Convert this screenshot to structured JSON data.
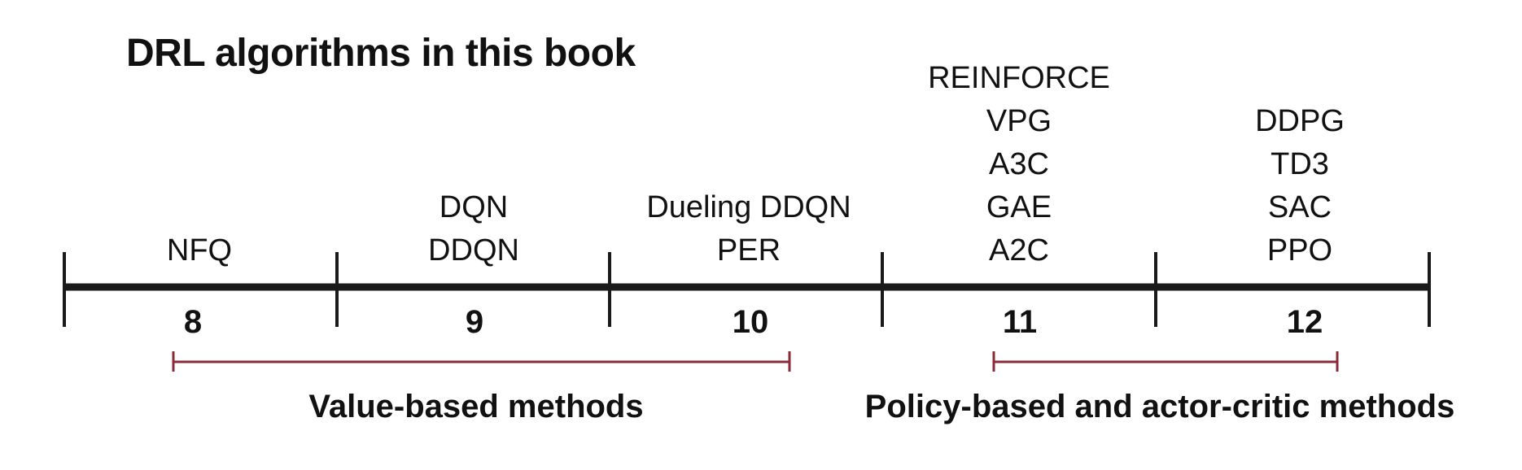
{
  "title": "DRL algorithms in this book",
  "chapters": [
    {
      "number": "8",
      "algorithms": [
        "NFQ"
      ]
    },
    {
      "number": "9",
      "algorithms": [
        "DQN",
        "DDQN"
      ]
    },
    {
      "number": "10",
      "algorithms": [
        "Dueling DDQN",
        "PER"
      ]
    },
    {
      "number": "11",
      "algorithms": [
        "REINFORCE",
        "VPG",
        "A3C",
        "GAE",
        "A2C"
      ]
    },
    {
      "number": "12",
      "algorithms": [
        "DDPG",
        "TD3",
        "SAC",
        "PPO"
      ]
    }
  ],
  "groups": [
    {
      "label": "Value-based methods"
    },
    {
      "label": "Policy-based and actor-critic methods"
    }
  ],
  "colors": {
    "timeline": "#1a1a1a",
    "bracket": "#8b2a3a",
    "text": "#111111"
  }
}
